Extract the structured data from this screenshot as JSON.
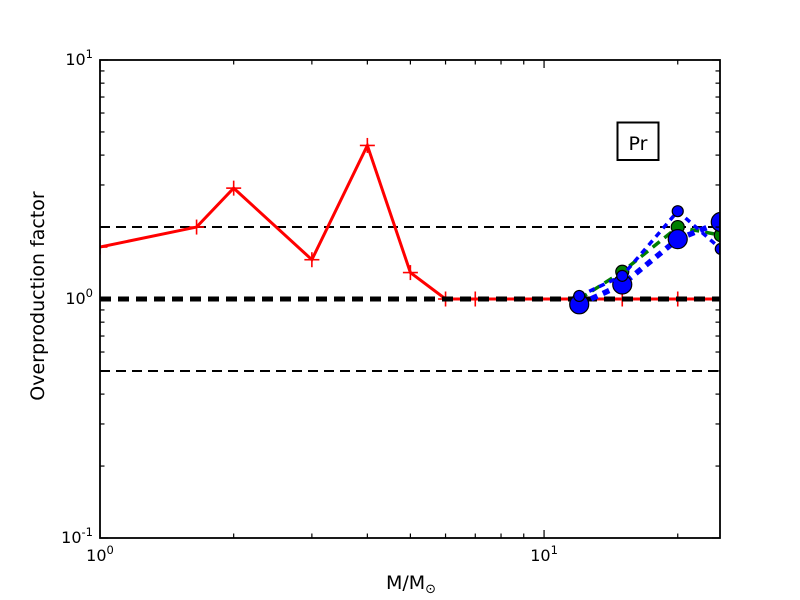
{
  "figure": {
    "background": "#ffffff",
    "annotation_label": "Pr"
  },
  "chart_data": {
    "type": "line",
    "title": "",
    "xlabel": {
      "main": "M/M",
      "sub": "⊙"
    },
    "ylabel": "Overproduction factor",
    "xscale": "log",
    "yscale": "log",
    "xlim": [
      1,
      24.9
    ],
    "ylim": [
      0.1,
      10
    ],
    "grid": false,
    "legend": "none",
    "annotation": {
      "text": "Pr",
      "x": 18,
      "y": 4.5,
      "boxed": true
    },
    "x_major_ticks": [
      {
        "v": 1,
        "label_base": "10",
        "label_exp": "0"
      },
      {
        "v": 10,
        "label_base": "10",
        "label_exp": "1"
      }
    ],
    "x_minor_ticks": [
      2,
      3,
      4,
      5,
      6,
      7,
      8,
      9,
      20
    ],
    "y_major_ticks": [
      {
        "v": 0.1,
        "label_base": "10",
        "label_exp": "-1"
      },
      {
        "v": 1,
        "label_base": "10",
        "label_exp": "0"
      },
      {
        "v": 10,
        "label_base": "10",
        "label_exp": "1"
      }
    ],
    "y_minor_ticks": [
      0.2,
      0.3,
      0.4,
      0.5,
      0.6,
      0.7,
      0.8,
      0.9,
      2,
      3,
      4,
      5,
      6,
      7,
      8,
      9
    ],
    "reference_lines": [
      {
        "y": 0.5,
        "color": "#000000",
        "style": "dashed",
        "width": 2,
        "dash": "10 6"
      },
      {
        "y": 1.0,
        "color": "#000000",
        "style": "dashed",
        "width": 5,
        "dash": "11 7"
      },
      {
        "y": 2.0,
        "color": "#000000",
        "style": "dashed",
        "width": 2,
        "dash": "10 6"
      }
    ],
    "series": [
      {
        "name": "red-solid-plus-markers",
        "color": "#ff0000",
        "line_style": "solid",
        "line_width": 3,
        "dash": "",
        "marker": "plus",
        "marker_size": 7.5,
        "x": [
          1.0,
          1.65,
          2.0,
          3.0,
          4.0,
          5.0,
          6.0,
          7.0,
          12.0,
          15.0,
          20.0,
          25.0
        ],
        "y": [
          1.65,
          2.0,
          2.91,
          1.46,
          4.39,
          1.29,
          1.0,
          1.0,
          1.0,
          1.0,
          1.0,
          1.0
        ]
      },
      {
        "name": "green-dashed-circle-markers",
        "color": "#007f00",
        "line_style": "dashed",
        "line_width": 3.5,
        "dash": "9 6",
        "marker": "circle",
        "marker_size": 6.5,
        "x": [
          12.0,
          15.0,
          20.0,
          25.0
        ],
        "y": [
          1.0,
          1.3,
          2.0,
          1.85
        ]
      },
      {
        "name": "blue-thick-dotted-large-circle-markers",
        "color": "#0000ff",
        "line_style": "dotted",
        "line_width": 5.5,
        "dash": "7 6",
        "marker": "circle",
        "marker_size": 9.5,
        "x": [
          12.0,
          15.0,
          20.0,
          25.0
        ],
        "y": [
          0.95,
          1.15,
          1.78,
          2.1
        ]
      },
      {
        "name": "blue-thin-dotted-small-circle-markers",
        "color": "#0000ff",
        "line_style": "dotted",
        "line_width": 3.5,
        "dash": "6 5",
        "marker": "circle",
        "marker_size": 5.5,
        "x": [
          12.0,
          15.0,
          20.0,
          25.0
        ],
        "y": [
          1.03,
          1.25,
          2.33,
          1.62
        ]
      }
    ]
  }
}
